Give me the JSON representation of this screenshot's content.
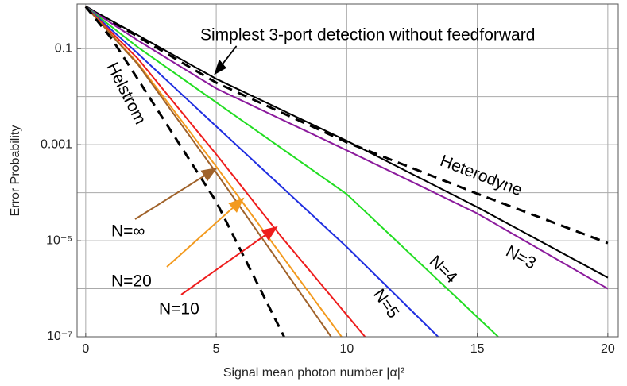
{
  "chart_data": {
    "type": "line",
    "xlabel": "Signal mean photon number |α|²",
    "ylabel": "Error Probability",
    "log_y": true,
    "grid": true,
    "xlim": [
      -0.33,
      20.4
    ],
    "xticks": [
      0,
      5,
      10,
      15,
      20
    ],
    "ylim": [
      1e-07,
      0.85
    ],
    "yticks": [
      0.1,
      0.001,
      {
        "value": 1e-05,
        "label": "10⁻⁵"
      },
      {
        "value": 1e-07,
        "label": "10⁻⁷"
      }
    ],
    "y_minor_grid": [
      0.01,
      0.0001,
      1e-06
    ],
    "series": [
      {
        "name": "Simplest 3-port detection without feedforward",
        "color": "#000000",
        "style": "solid",
        "x": [
          0,
          2,
          5,
          10,
          15,
          20
        ],
        "values": [
          0.75,
          0.19,
          0.0234,
          0.0012,
          5e-05,
          1.7e-06
        ]
      },
      {
        "name": "Heterodyne",
        "color": "#000000",
        "style": "dashed",
        "x": [
          0,
          2,
          5,
          10,
          15,
          20
        ],
        "values": [
          0.75,
          0.178,
          0.0195,
          0.00112,
          9.5e-05,
          8.9e-06
        ]
      },
      {
        "name": "N=3",
        "color": "#8b1a9c",
        "style": "solid",
        "x": [
          0,
          2,
          5,
          10,
          15,
          20
        ],
        "values": [
          0.75,
          0.148,
          0.0148,
          0.00076,
          3.7e-05,
          1e-06
        ]
      },
      {
        "name": "N=4",
        "color": "#22dd22",
        "style": "solid",
        "x": [
          0,
          2,
          5,
          10,
          15.8
        ],
        "values": [
          0.75,
          0.107,
          0.0076,
          9.3e-05,
          1e-07
        ]
      },
      {
        "name": "N=5",
        "color": "#1f2ee0",
        "style": "solid",
        "x": [
          0,
          2,
          5,
          10,
          13.5
        ],
        "values": [
          0.75,
          0.079,
          0.0024,
          7.4e-06,
          1e-07
        ]
      },
      {
        "name": "N=10",
        "color": "#ee1c1c",
        "style": "solid",
        "x": [
          0,
          2,
          5,
          7.5,
          10.7
        ],
        "values": [
          0.75,
          0.062,
          0.00063,
          1.2e-05,
          1e-07
        ]
      },
      {
        "name": "N=20",
        "color": "#f39a1e",
        "style": "solid",
        "x": [
          0,
          2,
          5,
          9.8
        ],
        "values": [
          0.75,
          0.05,
          0.00035,
          1e-07
        ]
      },
      {
        "name": "N=∞",
        "color": "#a0622a",
        "style": "solid",
        "x": [
          0,
          2,
          5,
          9.4
        ],
        "values": [
          0.75,
          0.047,
          0.00026,
          1e-07
        ]
      },
      {
        "name": "Helstrom",
        "color": "#000000",
        "style": "dashed",
        "x": [
          0,
          1,
          2,
          5,
          7.6
        ],
        "values": [
          0.75,
          0.16,
          0.023,
          6.5e-05,
          1e-07
        ]
      }
    ]
  }
}
